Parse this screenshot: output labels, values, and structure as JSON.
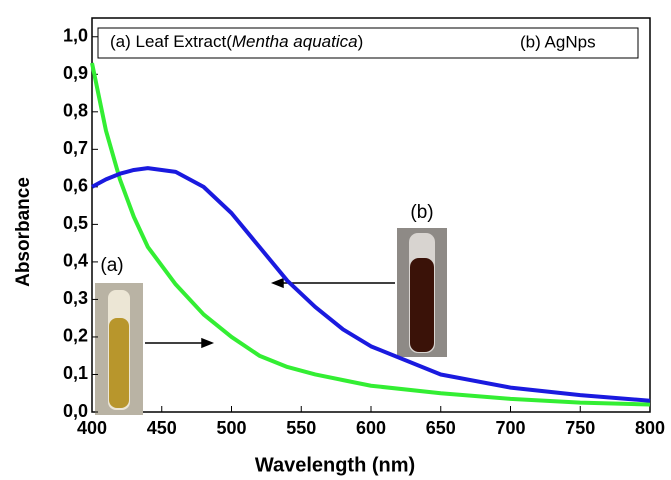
{
  "chart_data": {
    "type": "line",
    "x_label": "Wavelength (nm)",
    "y_label": "Absorbance",
    "legend_box": [
      "(a) Leaf Extract(",
      "Mentha aquatica",
      ")",
      "(b) AgNps"
    ],
    "x": [
      400,
      410,
      420,
      430,
      440,
      460,
      480,
      500,
      520,
      540,
      560,
      580,
      600,
      650,
      700,
      750,
      800
    ],
    "series": [
      {
        "name": "(a)",
        "color": "#33ee33",
        "values": [
          0.93,
          0.75,
          0.62,
          0.52,
          0.44,
          0.34,
          0.26,
          0.2,
          0.15,
          0.12,
          0.1,
          0.085,
          0.07,
          0.05,
          0.035,
          0.025,
          0.02
        ]
      },
      {
        "name": "(b)",
        "color": "#1a1adf",
        "values": [
          0.6,
          0.62,
          0.635,
          0.645,
          0.65,
          0.64,
          0.6,
          0.53,
          0.44,
          0.35,
          0.28,
          0.22,
          0.175,
          0.1,
          0.065,
          0.045,
          0.03
        ]
      }
    ],
    "xlim": [
      400,
      800
    ],
    "xticks": [
      400,
      450,
      500,
      550,
      600,
      650,
      700,
      750,
      800
    ],
    "ylim": [
      0,
      1.05
    ],
    "yticks": [
      {
        "value": 0,
        "label": "0,0"
      },
      {
        "value": 0.1,
        "label": "0,1"
      },
      {
        "value": 0.2,
        "label": "0,2"
      },
      {
        "value": 0.3,
        "label": "0,3"
      },
      {
        "value": 0.4,
        "label": "0,4"
      },
      {
        "value": 0.5,
        "label": "0,5"
      },
      {
        "value": 0.6,
        "label": "0,6"
      },
      {
        "value": 0.7,
        "label": "0,7"
      },
      {
        "value": 0.8,
        "label": "0,8"
      },
      {
        "value": 0.9,
        "label": "0,9"
      },
      {
        "value": 1.0,
        "label": "1,0"
      }
    ]
  }
}
